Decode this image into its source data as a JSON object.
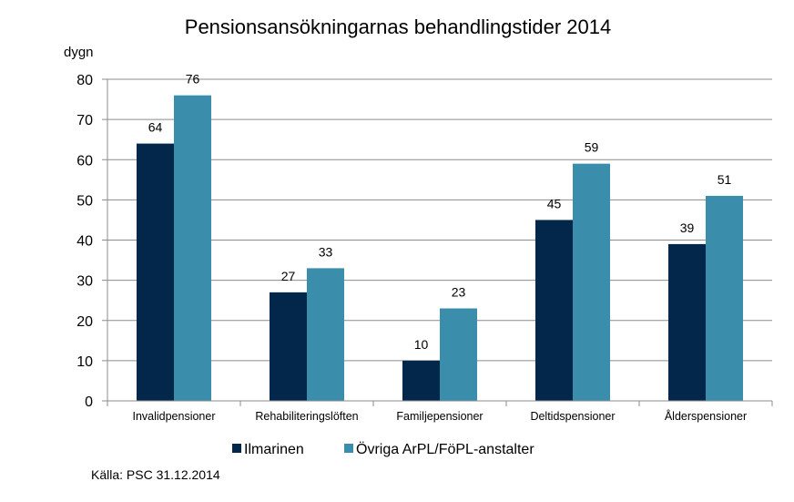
{
  "chart_data": {
    "type": "bar",
    "title": "Pensionsansökningarnas behandlingstider 2014",
    "ylabel": "dygn",
    "xlabel": "",
    "ylim": [
      0,
      80
    ],
    "yticks": [
      0,
      10,
      20,
      30,
      40,
      50,
      60,
      70,
      80
    ],
    "grid": true,
    "legend_position": "bottom",
    "categories": [
      "Invalidpensioner",
      "Rehabiliteringslöften",
      "Familjepensioner",
      "Deltidspensioner",
      "Ålderspensioner"
    ],
    "series": [
      {
        "name": "Ilmarinen",
        "color": "#03274a",
        "values": [
          64,
          27,
          10,
          45,
          39
        ]
      },
      {
        "name": "Övriga ArPL/FöPL-anstalter",
        "color": "#3a8eab",
        "values": [
          76,
          33,
          23,
          59,
          51
        ]
      }
    ]
  },
  "source_note": "Källa: PSC 31.12.2014"
}
